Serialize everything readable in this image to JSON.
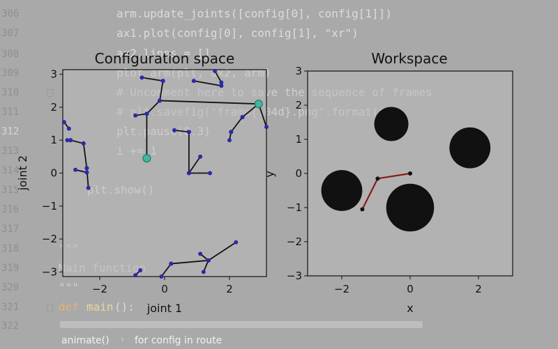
{
  "editor": {
    "line_numbers": [
      "306",
      "307",
      "308",
      "309",
      "310",
      "311",
      "312",
      "313",
      "314",
      "315",
      "316",
      "317",
      "318",
      "319",
      "320",
      "321",
      "322"
    ],
    "active_line": "312",
    "code": {
      "l306": "arm.update_joints([config[0], config[1]])",
      "l307": "ax1.plot(config[0], config[1], \"xr\")",
      "l308": "ax2.lines = []",
      "l309": "plot_arm(plt, ax2, arm)",
      "l310": "# Uncomment here to save the sequence of frames",
      "l311": "# plt.savefig('frame{:04d}.png'.format(i))",
      "l312": "plt.pause(0.3)",
      "l313": "i += 1",
      "l315": "plt.show()",
      "l318": "\"\"\"",
      "l319": "Main function",
      "l320": "\"\"\"",
      "l321_kw": "def",
      "l321_name": "main",
      "l321_rest": "():"
    }
  },
  "breadcrumb": {
    "item1": "animate()",
    "separator": "›",
    "item2": "for config in route"
  },
  "figure": {
    "left_title": "Configuration space",
    "left_xlabel": "joint 1",
    "left_ylabel": "joint 2",
    "right_title": "Workspace",
    "right_xlabel": "x",
    "right_ylabel": "y",
    "left_xticks": [
      "−2",
      "0",
      "2"
    ],
    "left_yticks": [
      "3",
      "2",
      "1",
      "0",
      "−1",
      "−2",
      "−3"
    ],
    "right_xticks": [
      "−2",
      "0",
      "2"
    ],
    "right_yticks": [
      "3",
      "2",
      "1",
      "0",
      "−1",
      "−2",
      "−3"
    ]
  },
  "colors": {
    "editor_bg": "#a9a9a9",
    "plot_bg": "#bcbcbc",
    "path_line": "#111111",
    "path_node": "#2a2aa8",
    "start_goal": "#3fb6a0",
    "arm_link": "#8b1a1a",
    "obstacle": "#111111"
  },
  "chart_data": [
    {
      "type": "scatter",
      "title": "Configuration space",
      "xlabel": "joint 1",
      "ylabel": "joint 2",
      "xlim": [
        -3.14,
        3.14
      ],
      "ylim": [
        -3.14,
        3.14
      ],
      "grid": false,
      "series": [
        {
          "values": [
            [
              [
                -3.1,
                1.55
              ],
              [
                -2.95,
                1.35
              ]
            ],
            [
              [
                -3.0,
                1.0
              ],
              [
                -2.9,
                1.0
              ]
            ],
            [
              [
                -2.9,
                1.0
              ],
              [
                -2.5,
                0.9
              ]
            ],
            [
              [
                -2.5,
                0.9
              ],
              [
                -2.4,
                0.15
              ]
            ],
            [
              [
                -2.4,
                0.15
              ],
              [
                -2.4,
                0.02
              ]
            ],
            [
              [
                -2.4,
                0.02
              ],
              [
                -2.75,
                0.1
              ]
            ],
            [
              [
                -2.4,
                0.15
              ],
              [
                -2.35,
                -0.45
              ]
            ],
            [
              [
                -0.7,
                2.9
              ],
              [
                -0.05,
                2.8
              ]
            ],
            [
              [
                -0.05,
                2.8
              ],
              [
                -0.15,
                2.2
              ]
            ],
            [
              [
                -0.15,
                2.2
              ],
              [
                -0.55,
                1.8
              ]
            ],
            [
              [
                0.9,
                2.8
              ],
              [
                1.75,
                2.65
              ]
            ],
            [
              [
                1.55,
                3.1
              ],
              [
                1.75,
                2.75
              ]
            ],
            [
              [
                -0.15,
                2.2
              ],
              [
                2.9,
                2.1
              ]
            ],
            [
              [
                2.9,
                2.1
              ],
              [
                3.14,
                1.4
              ]
            ],
            [
              [
                -0.55,
                1.8
              ],
              [
                -0.9,
                1.75
              ]
            ],
            [
              [
                -0.55,
                1.8
              ],
              [
                -0.55,
                0.45
              ]
            ],
            [
              [
                0.3,
                1.3
              ],
              [
                0.75,
                1.25
              ]
            ],
            [
              [
                0.75,
                1.25
              ],
              [
                0.75,
                0.0
              ]
            ],
            [
              [
                0.75,
                0.0
              ],
              [
                1.1,
                0.5
              ]
            ],
            [
              [
                0.75,
                0.0
              ],
              [
                1.4,
                0.0
              ]
            ],
            [
              [
                2.4,
                1.7
              ],
              [
                2.05,
                1.25
              ]
            ],
            [
              [
                2.05,
                1.25
              ],
              [
                2.0,
                1.0
              ]
            ],
            [
              [
                2.4,
                1.7
              ],
              [
                2.9,
                2.1
              ]
            ],
            [
              [
                1.1,
                -2.45
              ],
              [
                1.35,
                -2.65
              ]
            ],
            [
              [
                1.35,
                -2.65
              ],
              [
                2.2,
                -2.1
              ]
            ],
            [
              [
                1.35,
                -2.65
              ],
              [
                1.2,
                -3.0
              ]
            ],
            [
              [
                1.35,
                -2.65
              ],
              [
                0.2,
                -2.75
              ]
            ],
            [
              [
                0.2,
                -2.75
              ],
              [
                -0.1,
                -3.14
              ]
            ],
            [
              [
                -0.75,
                -2.95
              ],
              [
                -0.9,
                -3.1
              ]
            ]
          ]
        }
      ],
      "start": [
        -0.55,
        0.45
      ],
      "goal": [
        2.9,
        2.1
      ]
    },
    {
      "type": "scatter",
      "title": "Workspace",
      "xlabel": "x",
      "ylabel": "y",
      "xlim": [
        -3,
        3
      ],
      "ylim": [
        -3,
        3
      ],
      "grid": false,
      "obstacles": [
        {
          "x": -0.55,
          "y": 1.45,
          "r": 0.5
        },
        {
          "x": 1.75,
          "y": 0.75,
          "r": 0.6
        },
        {
          "x": -2.0,
          "y": -0.5,
          "r": 0.6
        },
        {
          "x": 0.0,
          "y": -1.0,
          "r": 0.7
        }
      ],
      "arm": [
        [
          0.0,
          0.0
        ],
        [
          -0.95,
          -0.15
        ],
        [
          -1.4,
          -1.05
        ]
      ]
    }
  ]
}
